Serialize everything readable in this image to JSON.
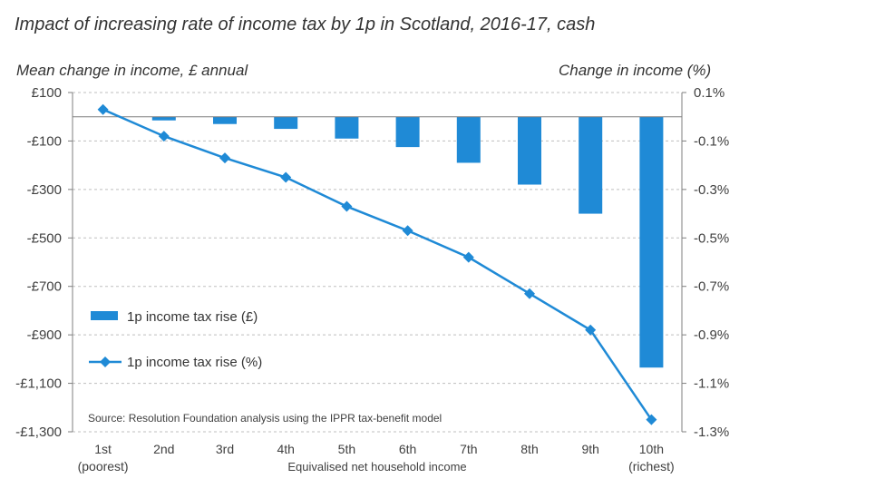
{
  "chart_data": {
    "type": "bar",
    "title": "Impact of increasing rate of income tax by 1p  in Scotland, 2016-17, cash",
    "ylabel": "Mean change in income, £ annual",
    "y2label": "Change in income (%)",
    "xlabel": "Equivalised net household income",
    "categories": [
      "1st",
      "2nd",
      "3rd",
      "4th",
      "5th",
      "6th",
      "7th",
      "8th",
      "9th",
      "10th"
    ],
    "category_sublabels": [
      "(poorest)",
      "",
      "",
      "",
      "",
      "",
      "",
      "",
      "",
      "(richest)"
    ],
    "ylim": [
      -1300,
      100
    ],
    "yticks": [
      100,
      -100,
      -300,
      -500,
      -700,
      -900,
      -1100,
      -1300
    ],
    "ytick_labels": [
      "£100",
      "-£100",
      "-£300",
      "-£500",
      "-£700",
      "-£900",
      "-£1,100",
      "-£1,300"
    ],
    "y2lim": [
      -1.3,
      0.1
    ],
    "y2ticks": [
      0.1,
      -0.1,
      -0.3,
      -0.5,
      -0.7,
      -0.9,
      -1.1,
      -1.3
    ],
    "y2tick_labels": [
      "0.1%",
      "-0.1%",
      "-0.3%",
      "-0.5%",
      "-0.7%",
      "-0.9%",
      "-1.1%",
      "-1.3%"
    ],
    "grid": true,
    "legend_position": "bottom-left",
    "series": [
      {
        "name": "1p income tax rise (£)",
        "type": "bar",
        "axis": "left",
        "color": "#1f8ad6",
        "values": [
          0,
          -15,
          -30,
          -50,
          -90,
          -125,
          -190,
          -280,
          -400,
          -1035
        ]
      },
      {
        "name": "1p income tax rise (%)",
        "type": "line",
        "axis": "right",
        "marker": "diamond",
        "color": "#1f8ad6",
        "values": [
          0.03,
          -0.08,
          -0.17,
          -0.25,
          -0.37,
          -0.47,
          -0.58,
          -0.73,
          -0.88,
          -1.25
        ]
      }
    ],
    "source": "Source: Resolution Foundation analysis using the IPPR tax-benefit model"
  }
}
